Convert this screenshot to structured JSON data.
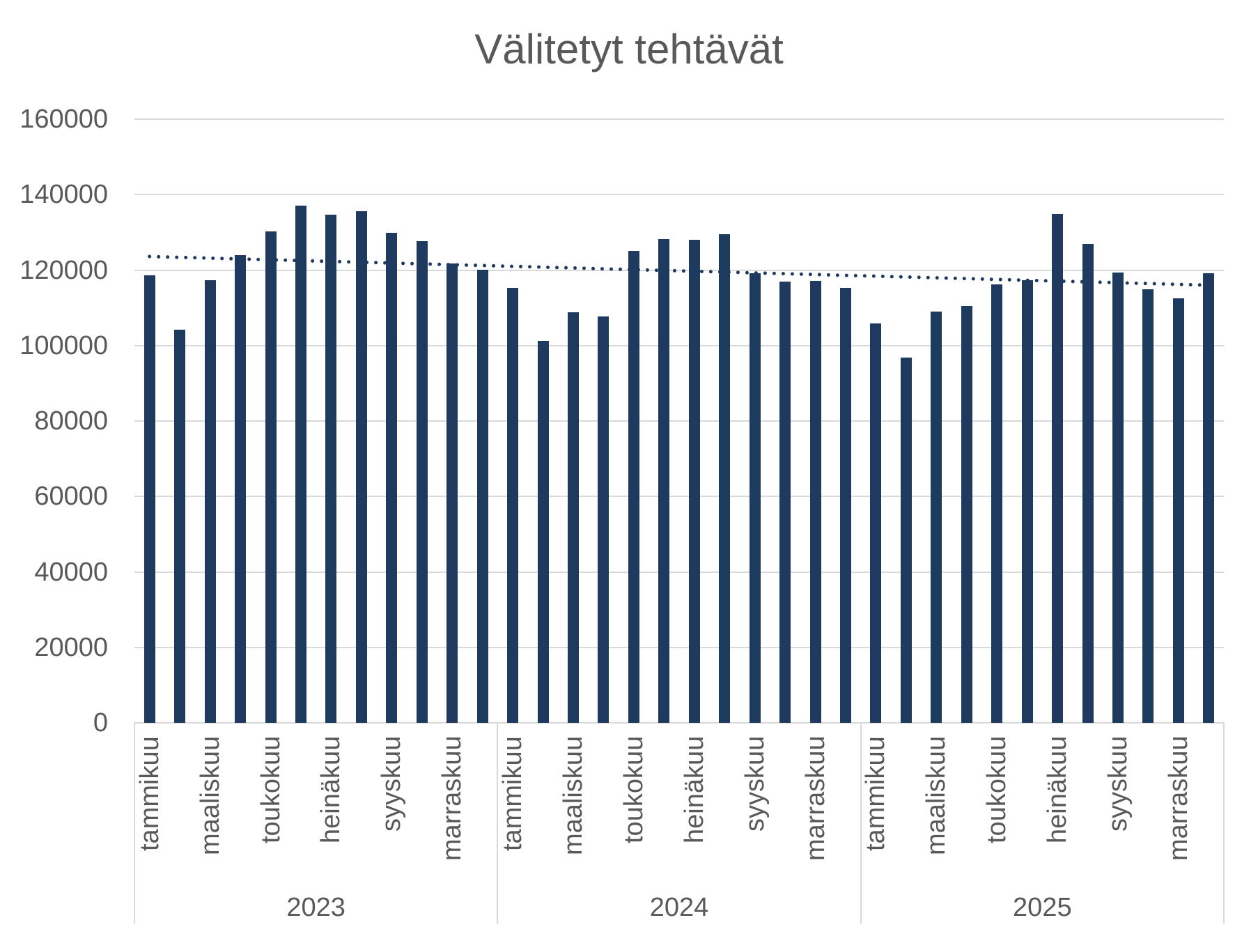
{
  "chart_data": {
    "type": "bar",
    "title": "Välitetyt tehtävät",
    "xlabel": "",
    "ylabel": "",
    "ylim": [
      0,
      160000
    ],
    "grid": true,
    "legend": false,
    "bar_color": "#1F3A5F",
    "text_color": "#595959",
    "gridline_color": "#D9D9D9",
    "ytick_labels": [
      "0",
      "20000",
      "40000",
      "60000",
      "80000",
      "100000",
      "120000",
      "140000",
      "160000"
    ],
    "month_tick_labels": [
      "tammikuu",
      "maaliskuu",
      "toukokuu",
      "heinäkuu",
      "syyskuu",
      "marraskuu"
    ],
    "month_tick_slots": [
      0,
      2,
      4,
      6,
      8,
      10
    ],
    "groups": [
      {
        "year": "2023",
        "values": [
          118600,
          104200,
          117300,
          124000,
          130300,
          137100,
          134700,
          135600,
          129900,
          127700,
          121800,
          120100
        ]
      },
      {
        "year": "2024",
        "values": [
          115200,
          101200,
          108800,
          107700,
          125000,
          128200,
          128000,
          129500,
          119100,
          116900,
          117100,
          115300
        ]
      },
      {
        "year": "2025",
        "values": [
          105900,
          96800,
          109000,
          110500,
          116200,
          117300,
          134900,
          126900,
          119400,
          114900,
          112500,
          119200
        ]
      }
    ],
    "trendline": {
      "style": "dotted",
      "color": "#1F3A5F",
      "start_value": 123600,
      "end_value": 116000
    }
  }
}
